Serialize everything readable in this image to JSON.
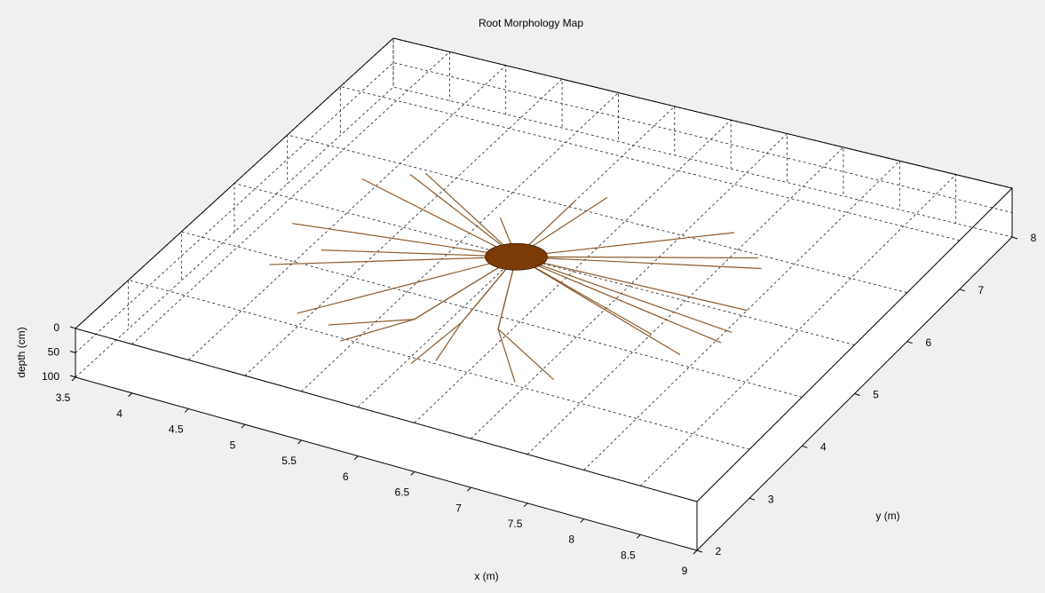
{
  "chart_data": {
    "type": "root3d",
    "title": "Root Morphology Map",
    "xlabel": "x (m)",
    "ylabel": "y (m)",
    "zlabel": "depth (cm)",
    "xlim": [
      3.5,
      9
    ],
    "xticks": [
      3.5,
      4,
      4.5,
      5,
      5.5,
      6,
      6.5,
      7,
      7.5,
      8,
      8.5,
      9
    ],
    "ylim": [
      2,
      8
    ],
    "yticks": [
      2,
      3,
      4,
      5,
      6,
      7,
      8
    ],
    "zlim": [
      0,
      100
    ],
    "zticks": [
      0,
      50,
      100
    ],
    "grid": true,
    "root_color": "#8b5a2b",
    "trunk_color": "#7b3a06",
    "trunk": {
      "x": 6,
      "y": 5
    },
    "roots": [
      {
        "x": [
          6,
          4.35
        ],
        "y": [
          5,
          5.6
        ]
      },
      {
        "x": [
          6,
          4.65
        ],
        "y": [
          5,
          5.87
        ]
      },
      {
        "x": [
          6,
          4.75
        ],
        "y": [
          5,
          5.95
        ]
      },
      {
        "x": [
          6,
          4.2
        ],
        "y": [
          5,
          4.6
        ]
      },
      {
        "x": [
          6,
          4.35
        ],
        "y": [
          5,
          3.85
        ]
      },
      {
        "x": [
          6,
          4.9
        ],
        "y": [
          5,
          3.2
        ]
      },
      {
        "x": [
          6,
          5.75,
          5.2
        ],
        "y": [
          5,
          3.6,
          3.15
        ]
      },
      {
        "x": [
          6,
          5.75,
          5.4
        ],
        "y": [
          5,
          3.6,
          2.95
        ]
      },
      {
        "x": [
          6,
          6.1,
          6.05
        ],
        "y": [
          5,
          3.75,
          2.9
        ]
      },
      {
        "x": [
          6,
          6.1,
          6.2
        ],
        "y": [
          5,
          3.75,
          3.05
        ]
      },
      {
        "x": [
          6,
          6.4,
          6.9
        ],
        "y": [
          5,
          3.8,
          3.05
        ]
      },
      {
        "x": [
          6,
          6.4,
          7.15
        ],
        "y": [
          5,
          3.8,
          3.25
        ]
      },
      {
        "x": [
          6,
          7.85
        ],
        "y": [
          5,
          4.15
        ]
      },
      {
        "x": [
          6,
          8.05
        ],
        "y": [
          5,
          4.5
        ]
      },
      {
        "x": [
          6,
          8.05
        ],
        "y": [
          5,
          4.7
        ]
      },
      {
        "x": [
          6,
          8.0
        ],
        "y": [
          5,
          5.1
        ]
      },
      {
        "x": [
          6,
          7.8
        ],
        "y": [
          5,
          5.8
        ]
      },
      {
        "x": [
          6,
          7.7
        ],
        "y": [
          5,
          5.95
        ]
      },
      {
        "x": [
          6,
          7.35
        ],
        "y": [
          5,
          6.25
        ]
      },
      {
        "x": [
          6,
          6.2
        ],
        "y": [
          5,
          6.3
        ]
      },
      {
        "x": [
          6,
          6.0
        ],
        "y": [
          5,
          6.1
        ]
      },
      {
        "x": [
          6,
          5.6
        ],
        "y": [
          5,
          5.55
        ]
      },
      {
        "x": [
          6,
          7.5
        ],
        "y": [
          5,
          4.35
        ]
      },
      {
        "x": [
          6,
          4.6
        ],
        "y": [
          5,
          4.3
        ]
      }
    ]
  }
}
